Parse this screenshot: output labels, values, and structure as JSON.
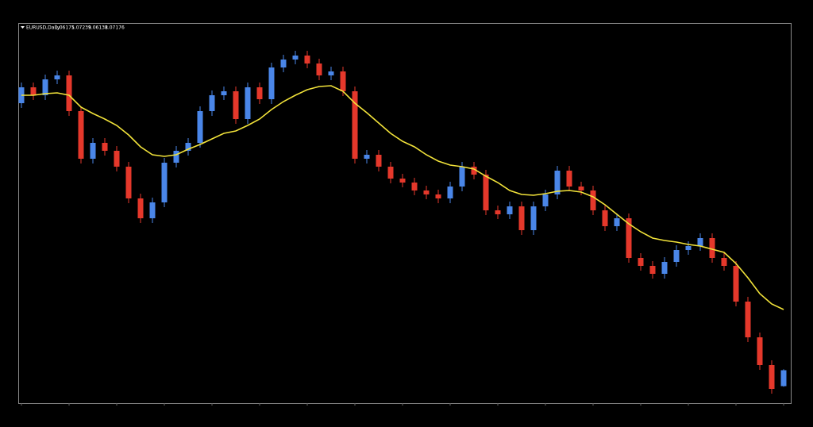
{
  "chart_data": {
    "type": "candlestick",
    "title": "EURUSD,Daily",
    "ylim": [
      1.051,
      1.29
    ],
    "up_color": "#4a86e8",
    "down_color": "#e5382b",
    "open": [
      1.24,
      1.25,
      1.245,
      1.255,
      1.2575,
      1.235,
      1.205,
      1.215,
      1.21,
      1.2,
      1.18,
      1.1675,
      1.1775,
      1.2025,
      1.21,
      1.215,
      1.235,
      1.245,
      1.2475,
      1.23,
      1.25,
      1.2425,
      1.2625,
      1.2675,
      1.27,
      1.265,
      1.2575,
      1.26,
      1.2475,
      1.205,
      1.2075,
      1.2,
      1.1925,
      1.19,
      1.185,
      1.1825,
      1.18,
      1.1875,
      1.2,
      1.195,
      1.1725,
      1.17,
      1.175,
      1.16,
      1.175,
      1.1825,
      1.1975,
      1.1875,
      1.185,
      1.1725,
      1.1625,
      1.1675,
      1.1425,
      1.1375,
      1.1325,
      1.14,
      1.1475,
      1.15,
      1.155,
      1.1425,
      1.1375,
      1.115,
      1.0925,
      1.075,
      1.06175
    ],
    "high": [
      1.253,
      1.253,
      1.258,
      1.2605,
      1.2605,
      1.238,
      1.218,
      1.218,
      1.213,
      1.203,
      1.183,
      1.1805,
      1.2055,
      1.213,
      1.218,
      1.238,
      1.248,
      1.2505,
      1.2505,
      1.253,
      1.253,
      1.2655,
      1.2705,
      1.273,
      1.273,
      1.268,
      1.263,
      1.263,
      1.2505,
      1.2105,
      1.2105,
      1.203,
      1.1955,
      1.193,
      1.188,
      1.1855,
      1.1905,
      1.203,
      1.203,
      1.198,
      1.1755,
      1.178,
      1.178,
      1.178,
      1.1855,
      1.2005,
      1.2005,
      1.1905,
      1.188,
      1.1755,
      1.1705,
      1.1705,
      1.1455,
      1.1405,
      1.143,
      1.1505,
      1.153,
      1.158,
      1.158,
      1.1455,
      1.1405,
      1.118,
      1.0955,
      1.078,
      1.07239
    ],
    "low": [
      1.237,
      1.242,
      1.242,
      1.252,
      1.232,
      1.202,
      1.202,
      1.207,
      1.197,
      1.177,
      1.1645,
      1.1645,
      1.1745,
      1.1995,
      1.207,
      1.212,
      1.232,
      1.242,
      1.227,
      1.227,
      1.2395,
      1.2395,
      1.2595,
      1.2645,
      1.262,
      1.2545,
      1.2545,
      1.2445,
      1.202,
      1.202,
      1.197,
      1.1895,
      1.187,
      1.182,
      1.1795,
      1.177,
      1.177,
      1.1845,
      1.192,
      1.1695,
      1.167,
      1.167,
      1.157,
      1.157,
      1.172,
      1.1795,
      1.1845,
      1.182,
      1.1695,
      1.1595,
      1.1595,
      1.1395,
      1.1345,
      1.1295,
      1.1295,
      1.137,
      1.1445,
      1.147,
      1.1395,
      1.1345,
      1.112,
      1.0895,
      1.072,
      1.057,
      1.06138
    ],
    "close": [
      1.25,
      1.245,
      1.255,
      1.2575,
      1.235,
      1.205,
      1.215,
      1.21,
      1.2,
      1.18,
      1.1675,
      1.1775,
      1.2025,
      1.21,
      1.215,
      1.235,
      1.245,
      1.2475,
      1.23,
      1.25,
      1.2425,
      1.2625,
      1.2675,
      1.27,
      1.265,
      1.2575,
      1.26,
      1.2475,
      1.205,
      1.2075,
      1.2,
      1.1925,
      1.19,
      1.185,
      1.1825,
      1.18,
      1.1875,
      1.2,
      1.195,
      1.1725,
      1.17,
      1.175,
      1.16,
      1.175,
      1.1825,
      1.1975,
      1.1875,
      1.185,
      1.1725,
      1.1625,
      1.1675,
      1.1425,
      1.1375,
      1.1325,
      1.14,
      1.1475,
      1.15,
      1.155,
      1.1425,
      1.1375,
      1.115,
      1.0925,
      1.075,
      1.06,
      1.07176
    ],
    "moving_average": {
      "color": "#f2e33a",
      "values": [
        1.245,
        1.245,
        1.246,
        1.2465,
        1.245,
        1.2375,
        1.2335,
        1.23,
        1.226,
        1.22,
        1.2125,
        1.2075,
        1.2065,
        1.2075,
        1.211,
        1.214,
        1.2175,
        1.221,
        1.2225,
        1.226,
        1.23,
        1.236,
        1.241,
        1.245,
        1.2485,
        1.2505,
        1.251,
        1.2475,
        1.24,
        1.234,
        1.2275,
        1.221,
        1.216,
        1.2125,
        1.2075,
        1.2035,
        1.201,
        1.2,
        1.1985,
        1.194,
        1.19,
        1.185,
        1.1825,
        1.182,
        1.183,
        1.1845,
        1.185,
        1.184,
        1.181,
        1.176,
        1.17,
        1.164,
        1.159,
        1.155,
        1.1535,
        1.1525,
        1.151,
        1.15,
        1.148,
        1.146,
        1.139,
        1.13,
        1.12,
        1.1135,
        1.11
      ]
    }
  }
}
